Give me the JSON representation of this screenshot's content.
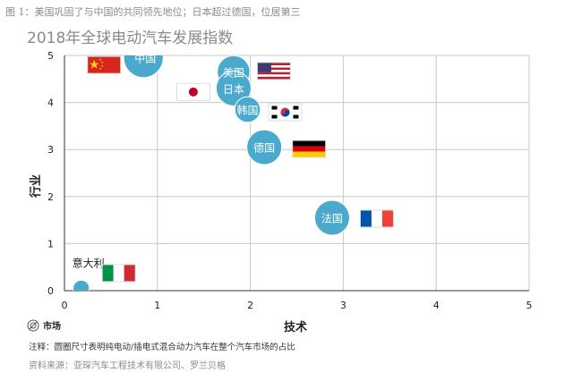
{
  "caption": "图 1：美国巩固了与中国的共同领先地位；日本超过德国，位居第三",
  "legend": {
    "label": "市场",
    "icon": "bubble-size-icon"
  },
  "note": "注释：圆圈尺寸表明纯电动/插电式混合动力汽车在整个汽车市场的占比",
  "source": "资料来源：亚琛汽车工程技术有限公司、罗兰贝格",
  "colors": {
    "bubble": "#4aa9cc",
    "axis": "#333333",
    "grid": "#c8c8c8"
  },
  "chart_data": {
    "type": "scatter",
    "title": "2018年全球电动汽车发展指数",
    "xlabel": "技术",
    "ylabel": "行业",
    "xlim": [
      0,
      5
    ],
    "ylim": [
      0,
      5
    ],
    "xticks": [
      "0",
      "1",
      "2",
      "3",
      "4",
      "5"
    ],
    "yticks": [
      "0",
      "1",
      "2",
      "3",
      "4",
      "5"
    ],
    "grid": true,
    "points": [
      {
        "label": "中国",
        "x": 0.85,
        "y": 4.95,
        "size": 0.85,
        "flag": "china-flag-icon"
      },
      {
        "label": "美国",
        "x": 1.82,
        "y": 4.65,
        "size": 0.7,
        "flag": "usa-flag-icon"
      },
      {
        "label": "日本",
        "x": 1.82,
        "y": 4.3,
        "size": 0.75,
        "flag": "japan-flag-icon"
      },
      {
        "label": "韩国",
        "x": 1.97,
        "y": 3.85,
        "size": 0.55,
        "flag": "korea-flag-icon"
      },
      {
        "label": "德国",
        "x": 2.15,
        "y": 3.05,
        "size": 0.75,
        "flag": "germany-flag-icon"
      },
      {
        "label": "法国",
        "x": 2.88,
        "y": 1.55,
        "size": 0.75,
        "flag": "france-flag-icon"
      },
      {
        "label": "意大利",
        "x": 0.18,
        "y": 0.05,
        "size": 0.35,
        "flag": "italy-flag-icon"
      }
    ]
  }
}
